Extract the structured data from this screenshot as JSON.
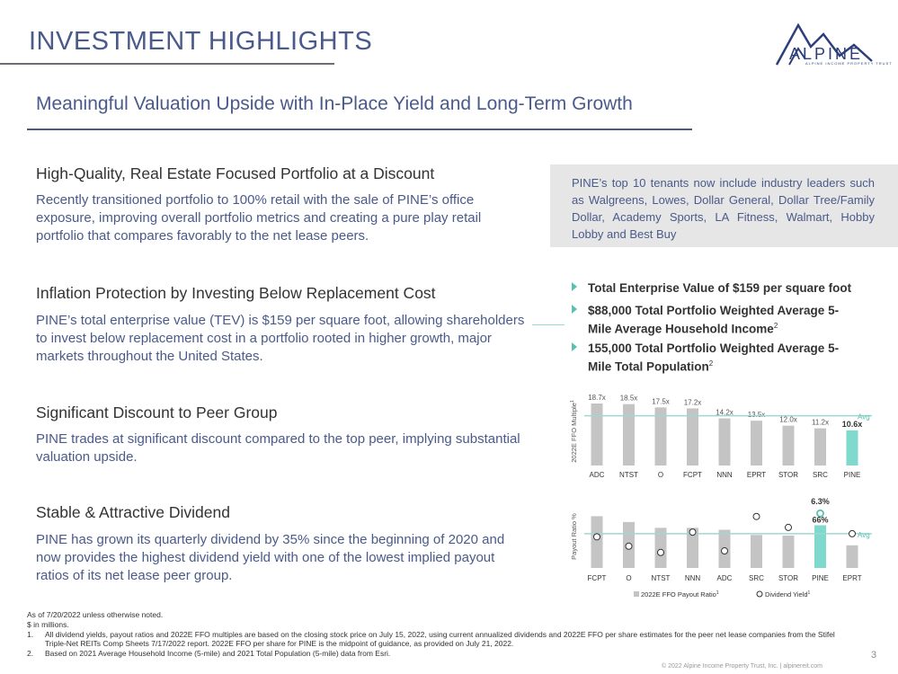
{
  "header": {
    "title": "INVESTMENT HIGHLIGHTS",
    "logo_text": "ALPINE",
    "logo_subtext": "ALPINE INCOME PROPERTY TRUST"
  },
  "subtitle": "Meaningful Valuation Upside with In-Place Yield and Long-Term Growth",
  "sections": [
    {
      "heading": "High-Quality, Real Estate Focused Portfolio at a Discount",
      "body": "Recently transitioned portfolio to 100% retail with the sale of PINE’s office exposure, improving overall portfolio metrics and creating a pure play retail portfolio that compares favorably to the net lease peers."
    },
    {
      "heading": "Inflation Protection by Investing Below Replacement Cost",
      "body": "PINE’s total enterprise value (TEV) is $159 per square foot, allowing shareholders to invest below replacement cost in a portfolio rooted in higher growth, major markets throughout the United States."
    },
    {
      "heading": "Significant Discount to Peer Group",
      "body": "PINE trades at significant discount compared to the top peer, implying substantial valuation upside."
    },
    {
      "heading": "Stable & Attractive Dividend",
      "body": "PINE has grown its quarterly dividend by 35% since the beginning of 2020 and now provides the highest dividend yield with one of the lowest implied payout ratios of its net lease peer group."
    }
  ],
  "callout": "PINE’s top 10 tenants now include industry leaders such as Walgreens, Lowes, Dollar General, Dollar Tree/Family Dollar, Academy Sports, LA Fitness, Walmart, Hobby Lobby and Best Buy",
  "bullets": [
    {
      "text": "Total Enterprise Value of $159 per square foot",
      "sup": ""
    },
    {
      "text": "$88,000 Total Portfolio Weighted Average 5-Mile Average Household Income",
      "sup": "2"
    },
    {
      "text": "155,000 Total Portfolio Weighted Average 5-Mile Total Population",
      "sup": "2"
    }
  ],
  "footnotes": {
    "line1": "As of 7/20/2022 unless otherwise noted.",
    "line2": "$ in millions.",
    "items": [
      {
        "num": "1.",
        "text": "All dividend yields, payout ratios and 2022E FFO multiples are based on the closing stock price on July 15, 2022, using current annualized dividends and 2022E FFO per share estimates for the peer net lease companies from the Stifel Triple-Net REITs Comp Sheets 7/17/2022 report. 2022E FFO per share for PINE is the midpoint of guidance, as provided on July 21, 2022."
      },
      {
        "num": "2.",
        "text": "Based on 2021 Average Household Income (5-mile) and 2021 Total Population (5-mile) data from Esri."
      }
    ]
  },
  "page_number": "3",
  "copyright": "© 2022 Alpine Income Property Trust, Inc.  |  alpinereit.com",
  "colors": {
    "bar": "#c4c4c4",
    "highlight": "#7fd9cc",
    "avg_line": "#9fd8d0",
    "navy": "#4a5a8a"
  },
  "chart_data": [
    {
      "type": "bar",
      "ylabel": "2022E FFO Multiple",
      "ylabel_sup": "1",
      "categories": [
        "ADC",
        "NTST",
        "O",
        "FCPT",
        "NNN",
        "EPRT",
        "STOR",
        "SRC",
        "PINE"
      ],
      "values": [
        18.7,
        18.5,
        17.5,
        17.2,
        14.2,
        13.5,
        12.0,
        11.2,
        10.6
      ],
      "labels": [
        "18.7x",
        "18.5x",
        "17.5x",
        "17.2x",
        "14.2x",
        "13.5x",
        "12.0x",
        "11.2x",
        "10.6x"
      ],
      "avg_value": 15.0,
      "avg_label": "Avg",
      "highlight": "PINE",
      "ylim": [
        0,
        19.5
      ]
    },
    {
      "type": "bar+scatter",
      "ylabel": "Payout Ratio %",
      "categories": [
        "FCPT",
        "O",
        "NTST",
        "NNN",
        "ADC",
        "SRC",
        "STOR",
        "PINE",
        "EPRT"
      ],
      "series": [
        {
          "name": "2022E FFO Payout Ratio",
          "sup": "1",
          "values": [
            80,
            71,
            62,
            62,
            59,
            51,
            50,
            66,
            35
          ]
        },
        {
          "name": "Dividend Yield",
          "sup": "1",
          "values": [
            4.8,
            4.2,
            3.8,
            5.1,
            3.9,
            6.1,
            5.4,
            6.3,
            5.0
          ]
        }
      ],
      "bar_scale": [
        0,
        100
      ],
      "yield_scale": [
        3.5,
        6.6
      ],
      "avg_label": "Avg",
      "avg_yield": 5.0,
      "highlight": "PINE",
      "highlight_labels": {
        "yield": "6.3%",
        "payout": "66%"
      }
    }
  ]
}
